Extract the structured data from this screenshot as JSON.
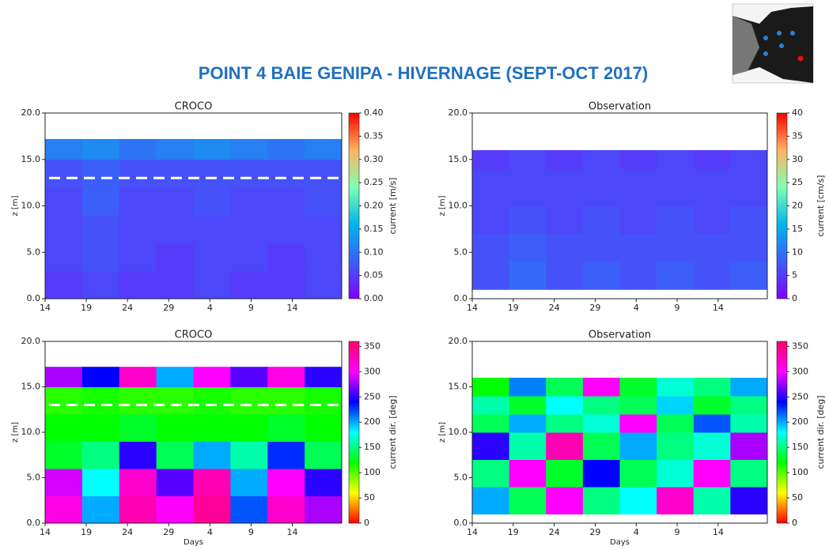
{
  "title": "POINT 4 BAIE GENIPA - HIVERNAGE (SEPT-OCT 2017)",
  "chart_data": [
    {
      "type": "heatmap",
      "title": "CROCO",
      "ylabel": "z [m]",
      "xlim": [
        0,
        36
      ],
      "xticks": [
        {
          "value": 0,
          "label": "14"
        },
        {
          "value": 5,
          "label": "19"
        },
        {
          "value": 10,
          "label": "24"
        },
        {
          "value": 15,
          "label": "29"
        },
        {
          "value": 20,
          "label": "4"
        },
        {
          "value": 25,
          "label": "9"
        },
        {
          "value": 30,
          "label": "14"
        }
      ],
      "ylim": [
        0,
        20
      ],
      "yticks": [
        {
          "value": 0,
          "label": "0.0"
        },
        {
          "value": 5,
          "label": "5.0"
        },
        {
          "value": 10,
          "label": "10.0"
        },
        {
          "value": 15,
          "label": "15.0"
        },
        {
          "value": 20,
          "label": "20.0"
        }
      ],
      "x_bins": [
        0,
        4.5,
        9,
        13.5,
        18,
        22.5,
        27,
        31.5,
        36
      ],
      "z_bins": [
        0,
        3,
        6,
        9,
        12,
        15,
        17.2
      ],
      "values": [
        [
          0.05,
          0.06,
          0.05,
          0.05,
          0.06,
          0.05,
          0.05,
          0.06
        ],
        [
          0.06,
          0.07,
          0.06,
          0.05,
          0.06,
          0.06,
          0.05,
          0.06
        ],
        [
          0.06,
          0.07,
          0.06,
          0.06,
          0.06,
          0.06,
          0.06,
          0.06
        ],
        [
          0.06,
          0.08,
          0.06,
          0.06,
          0.07,
          0.06,
          0.06,
          0.07
        ],
        [
          0.07,
          0.08,
          0.07,
          0.07,
          0.07,
          0.07,
          0.07,
          0.07
        ],
        [
          0.11,
          0.12,
          0.1,
          0.11,
          0.12,
          0.11,
          0.1,
          0.11
        ]
      ],
      "reference_z": 13,
      "colormap": [
        "#8000ff",
        "#3c5ef8",
        "#00b5eb",
        "#7fffb4",
        "#ffb360",
        "#ff0000"
      ],
      "clim": [
        0,
        0.4
      ],
      "clabel": "current [m/s]",
      "cticks": [
        {
          "value": 0,
          "label": "0.00"
        },
        {
          "value": 0.05,
          "label": "0.05"
        },
        {
          "value": 0.1,
          "label": "0.10"
        },
        {
          "value": 0.15,
          "label": "0.15"
        },
        {
          "value": 0.2,
          "label": "0.20"
        },
        {
          "value": 0.25,
          "label": "0.25"
        },
        {
          "value": 0.3,
          "label": "0.30"
        },
        {
          "value": 0.35,
          "label": "0.35"
        },
        {
          "value": 0.4,
          "label": "0.40"
        }
      ]
    },
    {
      "type": "heatmap",
      "title": "Observation",
      "ylabel": "z [m]",
      "xlim": [
        0,
        36
      ],
      "xticks": [
        {
          "value": 0,
          "label": "14"
        },
        {
          "value": 5,
          "label": "19"
        },
        {
          "value": 10,
          "label": "24"
        },
        {
          "value": 15,
          "label": "29"
        },
        {
          "value": 20,
          "label": "4"
        },
        {
          "value": 25,
          "label": "9"
        },
        {
          "value": 30,
          "label": "14"
        }
      ],
      "ylim": [
        0,
        20
      ],
      "yticks": [
        {
          "value": 0,
          "label": "0.0"
        },
        {
          "value": 5,
          "label": "5.0"
        },
        {
          "value": 10,
          "label": "10.0"
        },
        {
          "value": 15,
          "label": "15.0"
        },
        {
          "value": 20,
          "label": "20.0"
        }
      ],
      "x_bins": [
        0,
        4.5,
        9,
        13.5,
        18,
        22.5,
        27,
        31.5,
        36
      ],
      "z_bins": [
        1,
        4,
        7,
        10,
        12,
        14,
        16
      ],
      "values": [
        [
          7,
          9,
          7,
          8,
          7,
          8,
          7,
          8
        ],
        [
          7,
          8,
          7,
          7,
          7,
          7,
          7,
          7
        ],
        [
          6,
          7,
          6,
          7,
          6,
          7,
          6,
          7
        ],
        [
          6,
          6,
          6,
          6,
          6,
          6,
          6,
          6
        ],
        [
          6,
          6,
          6,
          6,
          6,
          6,
          6,
          6
        ],
        [
          5,
          6,
          5,
          6,
          5,
          6,
          5,
          6
        ]
      ],
      "colormap": [
        "#8000ff",
        "#3c5ef8",
        "#00b5eb",
        "#7fffb4",
        "#ffb360",
        "#ff0000"
      ],
      "clim": [
        0,
        40
      ],
      "clabel": "current [cm/s]",
      "cticks": [
        0,
        5,
        10,
        15,
        20,
        25,
        30,
        35,
        40
      ]
    },
    {
      "type": "heatmap",
      "title": "CROCO",
      "ylabel": "z [m]",
      "xlabel": "Days",
      "xlim": [
        0,
        36
      ],
      "xticks": [
        {
          "value": 0,
          "label": "14"
        },
        {
          "value": 5,
          "label": "19"
        },
        {
          "value": 10,
          "label": "24"
        },
        {
          "value": 15,
          "label": "29"
        },
        {
          "value": 20,
          "label": "4"
        },
        {
          "value": 25,
          "label": "9"
        },
        {
          "value": 30,
          "label": "14"
        }
      ],
      "ylim": [
        0,
        20
      ],
      "yticks": [
        {
          "value": 0,
          "label": "0.0"
        },
        {
          "value": 5,
          "label": "5.0"
        },
        {
          "value": 10,
          "label": "10.0"
        },
        {
          "value": 15,
          "label": "15.0"
        },
        {
          "value": 20,
          "label": "20.0"
        }
      ],
      "x_bins": [
        0,
        4.5,
        9,
        13.5,
        18,
        22.5,
        27,
        31.5,
        36
      ],
      "z_bins": [
        0,
        3,
        6,
        9,
        12,
        15,
        17.2
      ],
      "values": [
        [
          310,
          200,
          330,
          300,
          340,
          220,
          320,
          280
        ],
        [
          290,
          180,
          320,
          260,
          330,
          200,
          300,
          250
        ],
        [
          130,
          150,
          250,
          140,
          200,
          160,
          230,
          140
        ],
        [
          120,
          120,
          130,
          120,
          120,
          120,
          130,
          120
        ],
        [
          110,
          115,
          110,
          110,
          115,
          110,
          110,
          115
        ],
        [
          280,
          240,
          320,
          200,
          300,
          260,
          310,
          250
        ]
      ],
      "reference_z": 13,
      "colormap": [
        "#ff0000",
        "#ffff00",
        "#00ff00",
        "#00ffff",
        "#0000ff",
        "#ff00ff",
        "#ff0066"
      ],
      "clim": [
        0,
        360
      ],
      "clabel": "current dir. [deg]",
      "cticks": [
        0,
        50,
        100,
        150,
        200,
        250,
        300,
        350
      ]
    },
    {
      "type": "heatmap",
      "title": "Observation",
      "ylabel": "z [m]",
      "xlabel": "Days",
      "xlim": [
        0,
        36
      ],
      "xticks": [
        {
          "value": 0,
          "label": "14"
        },
        {
          "value": 5,
          "label": "19"
        },
        {
          "value": 10,
          "label": "24"
        },
        {
          "value": 15,
          "label": "29"
        },
        {
          "value": 20,
          "label": "4"
        },
        {
          "value": 25,
          "label": "9"
        },
        {
          "value": 30,
          "label": "14"
        }
      ],
      "ylim": [
        0,
        20
      ],
      "yticks": [
        {
          "value": 0,
          "label": "0.0"
        },
        {
          "value": 5,
          "label": "5.0"
        },
        {
          "value": 10,
          "label": "10.0"
        },
        {
          "value": 15,
          "label": "15.0"
        },
        {
          "value": 20,
          "label": "20.0"
        }
      ],
      "x_bins": [
        0,
        4.5,
        9,
        13.5,
        18,
        22.5,
        27,
        31.5,
        36
      ],
      "z_bins": [
        1,
        4,
        7,
        10,
        12,
        14,
        16
      ],
      "values": [
        [
          200,
          140,
          300,
          150,
          180,
          320,
          160,
          250
        ],
        [
          150,
          300,
          130,
          240,
          140,
          170,
          300,
          150
        ],
        [
          250,
          160,
          330,
          140,
          200,
          150,
          170,
          280
        ],
        [
          140,
          200,
          150,
          170,
          300,
          140,
          220,
          160
        ],
        [
          160,
          130,
          180,
          150,
          140,
          190,
          130,
          150
        ],
        [
          120,
          210,
          140,
          300,
          130,
          170,
          150,
          200
        ]
      ],
      "colormap": [
        "#ff0000",
        "#ffff00",
        "#00ff00",
        "#00ffff",
        "#0000ff",
        "#ff00ff",
        "#ff0066"
      ],
      "clim": [
        0,
        360
      ],
      "clabel": "current dir. [deg]",
      "cticks": [
        0,
        50,
        100,
        150,
        200,
        250,
        300,
        350
      ]
    }
  ]
}
